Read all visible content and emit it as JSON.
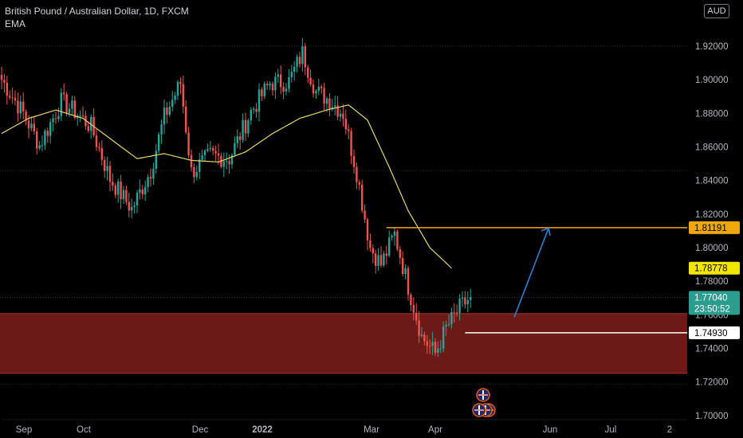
{
  "legend": {
    "symbol_line": "British Pound / Australian Dollar, 1D, FXCM",
    "indicator": "EMA"
  },
  "currency_badge": "AUD",
  "colors": {
    "background": "#000000",
    "candle_up": "#26a69a",
    "candle_down": "#ef5350",
    "ema": "#e8d86a",
    "resistance": "#f0a70a",
    "support_zone": "#6b1a17",
    "arrow": "#2f7fd0",
    "price_tag": "#2a9d8f",
    "ema_tag": "#f2e600"
  },
  "chart_data": {
    "type": "candlestick",
    "title": "British Pound / Australian Dollar, 1D, FXCM",
    "indicators": [
      "EMA"
    ],
    "y_axis": {
      "ticks": [
        "1.92000",
        "1.90000",
        "1.88000",
        "1.86000",
        "1.84000",
        "1.82000",
        "1.80000",
        "1.78000",
        "1.76000",
        "1.74000",
        "1.72000",
        "1.70000"
      ],
      "ylim": [
        1.694,
        1.945
      ]
    },
    "x_axis": {
      "ticks": [
        "Sep",
        "Oct",
        "Dec",
        "2022",
        "Mar",
        "Apr",
        "Jun",
        "Jul",
        "2"
      ]
    },
    "price_labels": {
      "resistance": "1.81191",
      "ema": "1.78778",
      "last": "1.77040",
      "countdown": "23:50:52",
      "support": "1.74930"
    },
    "support_zone": {
      "top": 1.7607,
      "bottom": 1.7251
    },
    "resistance_level": 1.81191,
    "support_level": 1.7493,
    "close_anchors": [
      {
        "i": 0,
        "c": 1.9
      },
      {
        "i": 8,
        "c": 1.88
      },
      {
        "i": 14,
        "c": 1.861
      },
      {
        "i": 22,
        "c": 1.887
      },
      {
        "i": 27,
        "c": 1.881
      },
      {
        "i": 33,
        "c": 1.872
      },
      {
        "i": 40,
        "c": 1.841
      },
      {
        "i": 48,
        "c": 1.823
      },
      {
        "i": 55,
        "c": 1.846
      },
      {
        "i": 60,
        "c": 1.878
      },
      {
        "i": 66,
        "c": 1.898
      },
      {
        "i": 70,
        "c": 1.845
      },
      {
        "i": 77,
        "c": 1.855
      },
      {
        "i": 84,
        "c": 1.853
      },
      {
        "i": 92,
        "c": 1.881
      },
      {
        "i": 99,
        "c": 1.898
      },
      {
        "i": 106,
        "c": 1.899
      },
      {
        "i": 111,
        "c": 1.916
      },
      {
        "i": 116,
        "c": 1.893
      },
      {
        "i": 121,
        "c": 1.888
      },
      {
        "i": 126,
        "c": 1.88
      },
      {
        "i": 131,
        "c": 1.845
      },
      {
        "i": 136,
        "c": 1.8
      },
      {
        "i": 140,
        "c": 1.79
      },
      {
        "i": 145,
        "c": 1.808
      },
      {
        "i": 150,
        "c": 1.777
      },
      {
        "i": 155,
        "c": 1.747
      },
      {
        "i": 160,
        "c": 1.737
      },
      {
        "i": 164,
        "c": 1.752
      },
      {
        "i": 169,
        "c": 1.764
      },
      {
        "i": 173,
        "c": 1.7704
      }
    ],
    "ema_points": [
      {
        "i": 0,
        "v": 1.868
      },
      {
        "i": 10,
        "v": 1.877
      },
      {
        "i": 20,
        "v": 1.882
      },
      {
        "i": 30,
        "v": 1.877
      },
      {
        "i": 40,
        "v": 1.865
      },
      {
        "i": 50,
        "v": 1.853
      },
      {
        "i": 60,
        "v": 1.856
      },
      {
        "i": 70,
        "v": 1.852
      },
      {
        "i": 80,
        "v": 1.851
      },
      {
        "i": 90,
        "v": 1.857
      },
      {
        "i": 100,
        "v": 1.868
      },
      {
        "i": 110,
        "v": 1.877
      },
      {
        "i": 120,
        "v": 1.882
      },
      {
        "i": 128,
        "v": 1.885
      },
      {
        "i": 135,
        "v": 1.876
      },
      {
        "i": 143,
        "v": 1.848
      },
      {
        "i": 150,
        "v": 1.822
      },
      {
        "i": 158,
        "v": 1.8
      },
      {
        "i": 166,
        "v": 1.7878
      }
    ],
    "candle_count": 174
  }
}
